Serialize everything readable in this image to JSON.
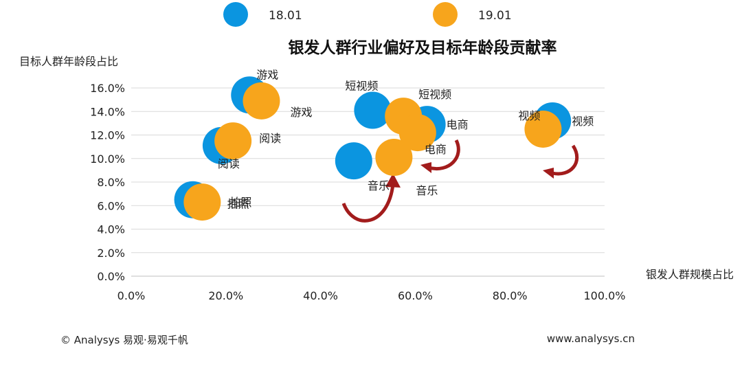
{
  "colors": {
    "series_1801": "#0b95e0",
    "series_1901": "#f7a51c",
    "arrow": "#a21c1c",
    "grid": "#d9d9d9",
    "axis": "#bfbfbf"
  },
  "chart_data": {
    "type": "scatter",
    "title": "银发人群行业偏好及目标年龄段贡献率",
    "xlabel": "银发人群规模占比",
    "ylabel": "目标人群年龄段占比",
    "xlim": [
      0,
      100
    ],
    "ylim": [
      0,
      16
    ],
    "x_ticks": [
      "0.0%",
      "20.0%",
      "40.0%",
      "60.0%",
      "80.0%",
      "100.0%"
    ],
    "y_ticks": [
      "0.0%",
      "2.0%",
      "4.0%",
      "6.0%",
      "8.0%",
      "10.0%",
      "12.0%",
      "14.0%",
      "16.0%"
    ],
    "grid": "horizontal",
    "legend_position": "top",
    "series": [
      {
        "name": "18.01",
        "color": "#0b95e0",
        "points": [
          {
            "label": "游戏",
            "x": 25.0,
            "y": 15.4
          },
          {
            "label": "短视频",
            "x": 51.0,
            "y": 14.1
          },
          {
            "label": "电商",
            "x": 62.5,
            "y": 12.9
          },
          {
            "label": "视频",
            "x": 89.0,
            "y": 13.2
          },
          {
            "label": "阅读",
            "x": 19.0,
            "y": 11.1
          },
          {
            "label": "音乐",
            "x": 47.0,
            "y": 9.8
          },
          {
            "label": "拍照",
            "x": 13.0,
            "y": 6.5
          }
        ]
      },
      {
        "name": "19.01",
        "color": "#f7a51c",
        "points": [
          {
            "label": "游戏",
            "x": 27.5,
            "y": 14.9
          },
          {
            "label": "短视频",
            "x": 57.5,
            "y": 13.6
          },
          {
            "label": "电商",
            "x": 60.5,
            "y": 12.2
          },
          {
            "label": "视频",
            "x": 87.0,
            "y": 12.5
          },
          {
            "label": "阅读",
            "x": 21.5,
            "y": 11.5
          },
          {
            "label": "音乐",
            "x": 55.5,
            "y": 10.1
          },
          {
            "label": "拍照",
            "x": 15.0,
            "y": 6.3
          }
        ]
      }
    ]
  },
  "footer": {
    "copyright": "© Analysys 易观·易观千帆",
    "website": "www.analysys.cn"
  }
}
